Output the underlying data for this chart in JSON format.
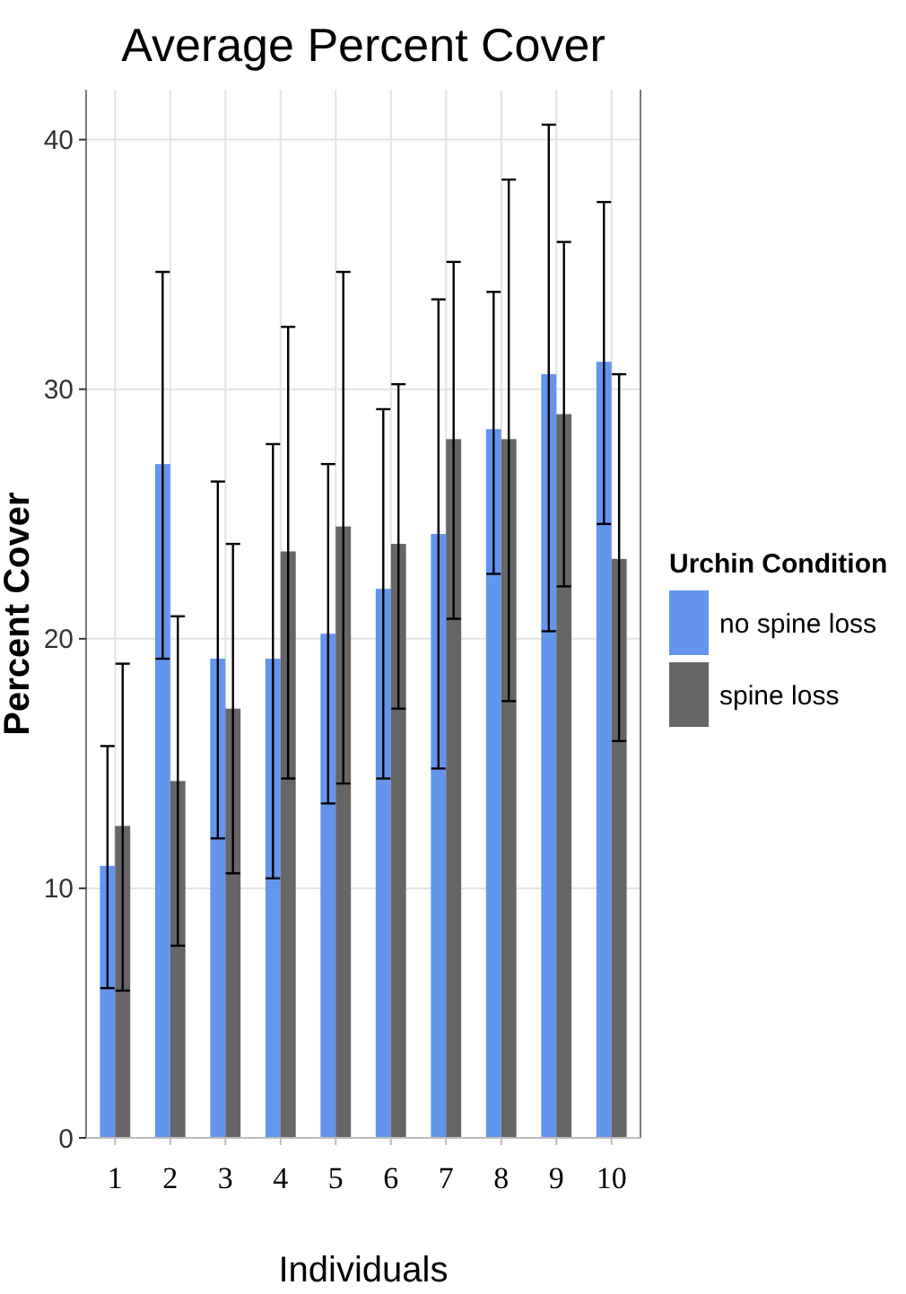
{
  "chart_data": {
    "type": "bar",
    "title": "Average Percent Cover",
    "xlabel": "Individuals",
    "ylabel": "Percent Cover",
    "legend_title": "Urchin Condition",
    "categories": [
      "1",
      "2",
      "3",
      "4",
      "5",
      "6",
      "7",
      "8",
      "9",
      "10"
    ],
    "series": [
      {
        "name": "no spine loss",
        "color": "#6495ed",
        "values": [
          10.9,
          27.0,
          19.2,
          19.2,
          20.2,
          22.0,
          24.2,
          28.4,
          30.6,
          31.1
        ],
        "errors": [
          [
            6.0,
            15.7
          ],
          [
            19.2,
            34.7
          ],
          [
            12.0,
            26.3
          ],
          [
            10.4,
            27.8
          ],
          [
            13.4,
            27.0
          ],
          [
            14.4,
            29.2
          ],
          [
            14.8,
            33.6
          ],
          [
            22.6,
            33.9
          ],
          [
            20.3,
            40.6
          ],
          [
            24.6,
            37.5
          ]
        ]
      },
      {
        "name": "spine loss",
        "color": "#666666",
        "values": [
          12.5,
          14.3,
          17.2,
          23.5,
          24.5,
          23.8,
          28.0,
          28.0,
          29.0,
          23.2
        ],
        "errors": [
          [
            5.9,
            19.0
          ],
          [
            7.7,
            20.9
          ],
          [
            10.6,
            23.8
          ],
          [
            14.4,
            32.5
          ],
          [
            14.2,
            34.7
          ],
          [
            17.2,
            30.2
          ],
          [
            20.8,
            35.1
          ],
          [
            17.5,
            38.4
          ],
          [
            22.1,
            35.9
          ],
          [
            15.9,
            30.6
          ]
        ]
      }
    ],
    "ylim": [
      0,
      42
    ],
    "yticks": [
      0,
      10,
      20,
      30,
      40
    ],
    "grid": true,
    "legend": "right"
  }
}
